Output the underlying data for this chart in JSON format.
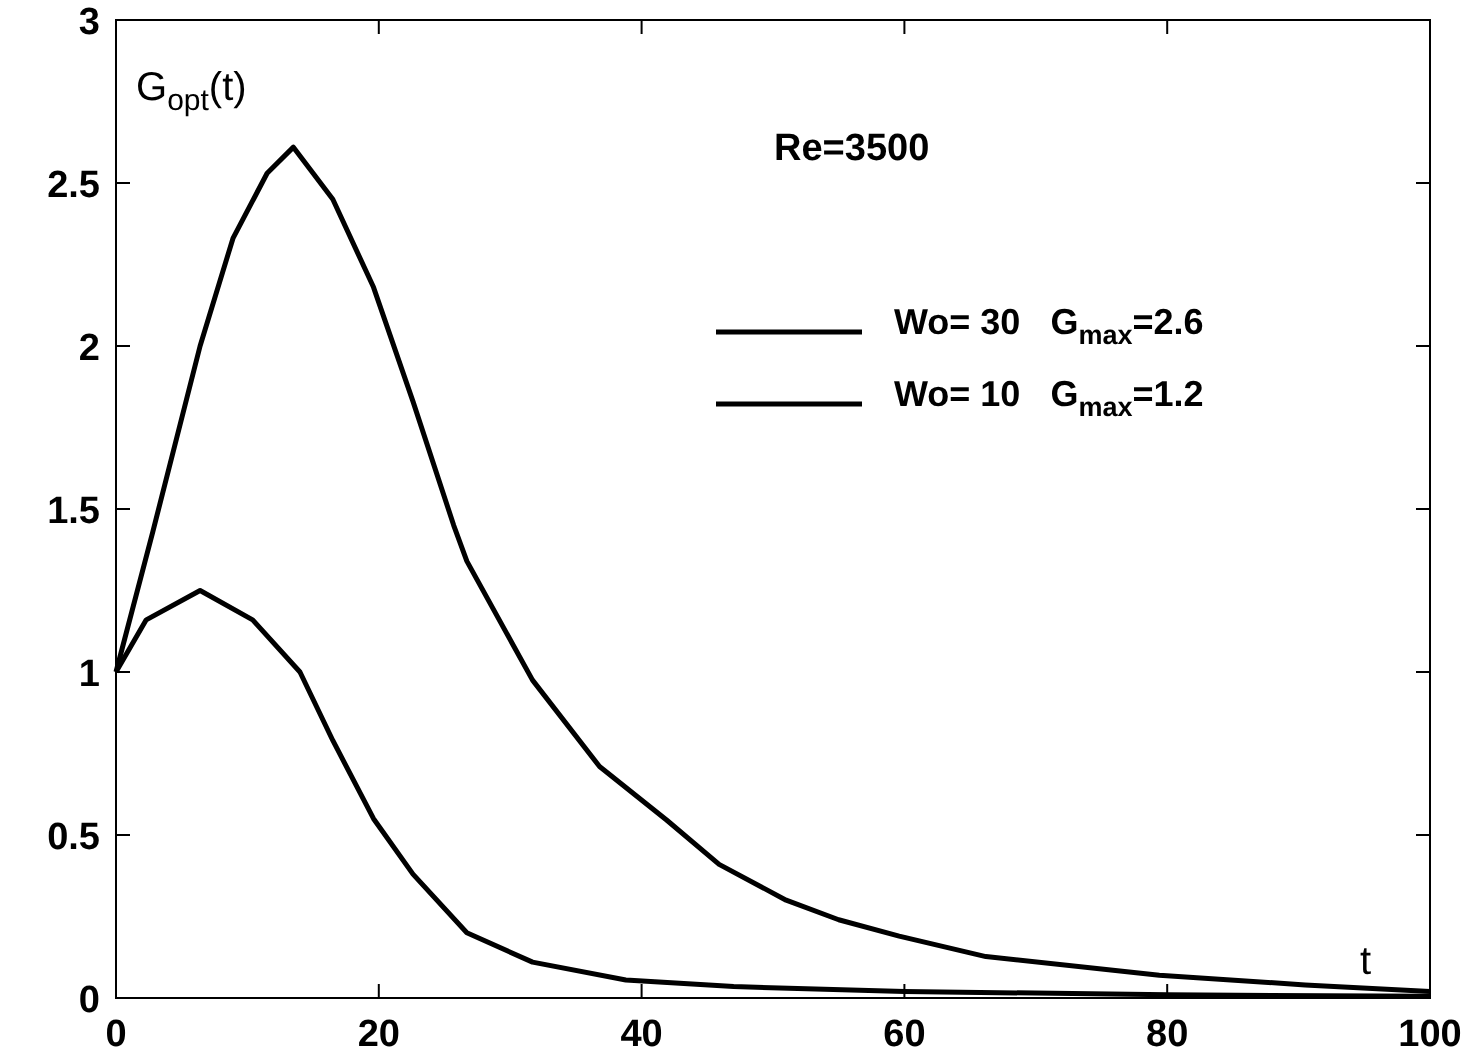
{
  "chart_data": {
    "type": "line",
    "xlabel": "t",
    "ylabel": "G$_{opt}$(t)",
    "annotations": [
      "Re=3500"
    ],
    "xlim": [
      0,
      100
    ],
    "ylim": [
      0,
      3
    ],
    "xticks": [
      0,
      20,
      40,
      60,
      80,
      100
    ],
    "yticks": [
      0,
      0.5,
      1,
      1.5,
      2,
      2.5,
      3
    ],
    "grid": false,
    "legend": "top right",
    "marker": "none",
    "line_style": "solid",
    "series": [
      {
        "name": "Wo= 30   G$_{max}$=2.6",
        "color": "#000000",
        "x": [
          0,
          2.8,
          6.4,
          8.9,
          11.5,
          13.5,
          16.5,
          19.6,
          22.6,
          25.7,
          26.7,
          31.7,
          36.8,
          41.9,
          45.9,
          51,
          55,
          59.6,
          66.2,
          79.4,
          90.5,
          100
        ],
        "values": [
          1,
          1.43,
          2.0,
          2.33,
          2.53,
          2.61,
          2.45,
          2.18,
          1.83,
          1.45,
          1.34,
          0.975,
          0.71,
          0.546,
          0.41,
          0.3,
          0.24,
          0.19,
          0.127,
          0.07,
          0.04,
          0.02
        ]
      },
      {
        "name": "Wo= 10   G$_{max}$=1.2",
        "color": "#000000",
        "x": [
          0,
          2.3,
          6.4,
          10.4,
          14,
          16.5,
          19.6,
          22.6,
          26.7,
          31.7,
          38.8,
          47,
          60,
          80,
          100
        ],
        "values": [
          1,
          1.16,
          1.25,
          1.16,
          1.0,
          0.79,
          0.55,
          0.38,
          0.2,
          0.11,
          0.055,
          0.035,
          0.02,
          0.01,
          0.005
        ]
      }
    ]
  }
}
